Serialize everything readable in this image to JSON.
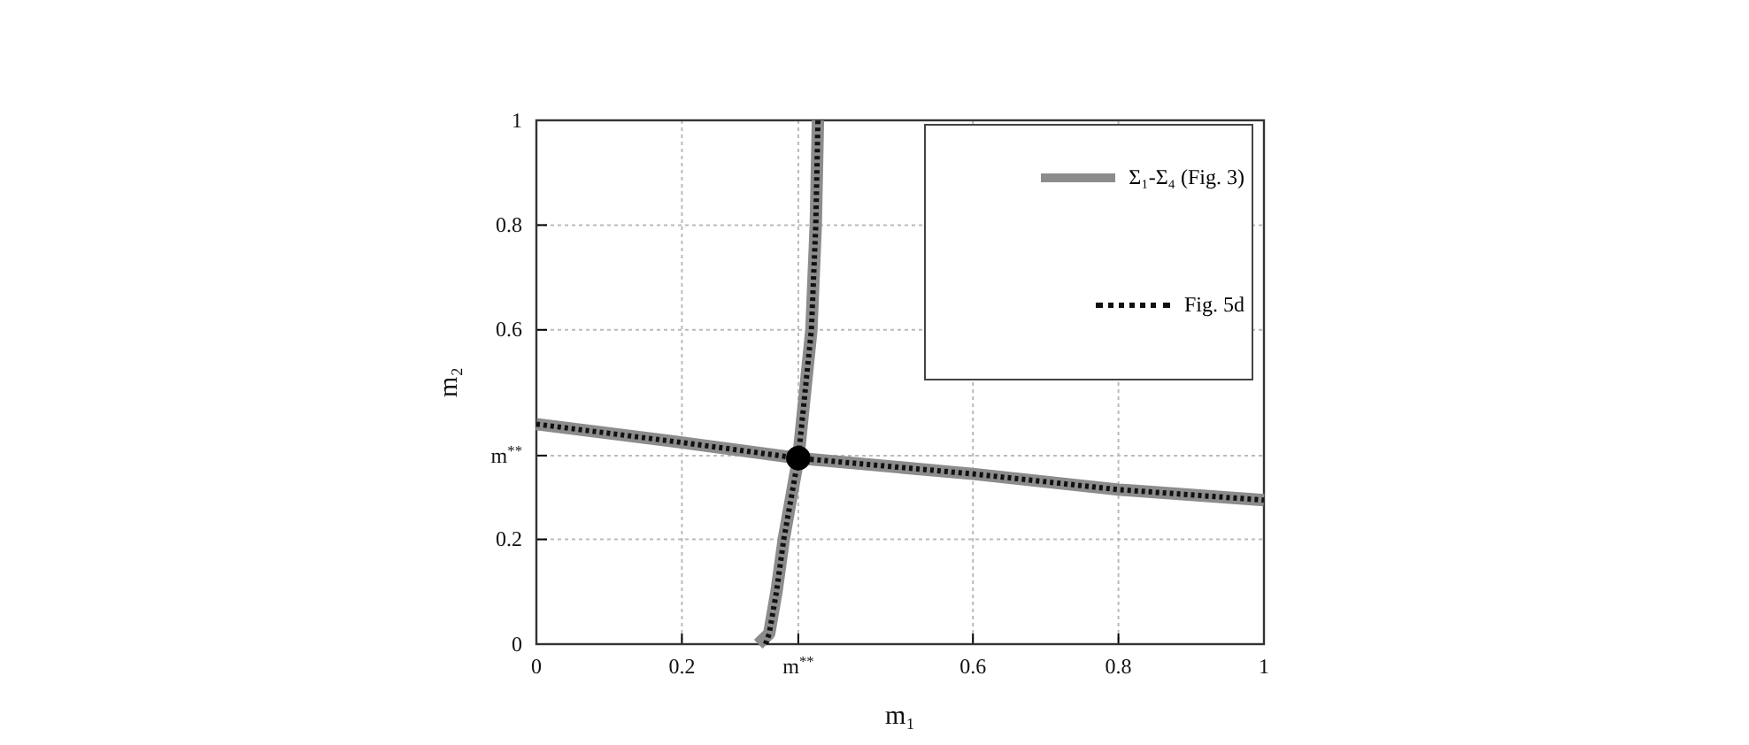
{
  "chart_data": {
    "type": "line",
    "xlabel": "m₁",
    "ylabel": "m₂",
    "xlim": [
      0,
      1
    ],
    "ylim": [
      0,
      1
    ],
    "xticks": [
      0,
      0.2,
      {
        "value": 0.36,
        "label": "m$^{**}$"
      },
      0.6,
      0.8,
      1
    ],
    "yticks": [
      0,
      0.2,
      {
        "value": 0.36,
        "label": "m$^{**}$"
      },
      0.6,
      0.8,
      1
    ],
    "grid": true,
    "legend": "top right",
    "series": [
      {
        "name": "Σ₁-Σ₄ (Fig. 3)",
        "color": "#8c8c8c",
        "line_style": "solid",
        "x": [
          0,
          0.2,
          0.36,
          0.6,
          0.8,
          1,
          null,
          0.305,
          0.32,
          0.33,
          0.34,
          0.36,
          0.378,
          0.384,
          0.387
        ],
        "values": [
          0.42,
          0.385,
          0.355,
          0.325,
          0.295,
          0.275,
          null,
          0,
          0.02,
          0.1,
          0.2,
          0.355,
          0.6,
          0.8,
          1
        ]
      },
      {
        "name": "Fig. 5d",
        "color": "#111111",
        "line_style": "dotted",
        "x": [
          0,
          0.2,
          0.36,
          0.6,
          0.8,
          1,
          null,
          0.315,
          0.32,
          0.33,
          0.34,
          0.36,
          0.378,
          0.384,
          0.387
        ],
        "values": [
          0.42,
          0.385,
          0.355,
          0.325,
          0.295,
          0.275,
          null,
          0,
          0.02,
          0.1,
          0.2,
          0.355,
          0.6,
          0.8,
          1
        ]
      },
      {
        "type": "scatter",
        "color": "#000000",
        "marker": "circle",
        "x": [
          0.36
        ],
        "values": [
          0.355
        ]
      }
    ]
  }
}
